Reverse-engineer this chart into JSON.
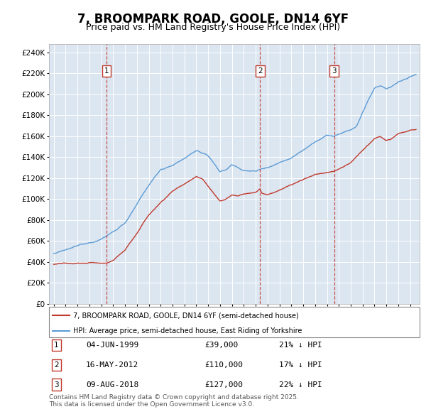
{
  "title": "7, BROOMPARK ROAD, GOOLE, DN14 6YF",
  "subtitle": "Price paid vs. HM Land Registry's House Price Index (HPI)",
  "legend_label_red": "7, BROOMPARK ROAD, GOOLE, DN14 6YF (semi-detached house)",
  "legend_label_blue": "HPI: Average price, semi-detached house, East Riding of Yorkshire",
  "footer": "Contains HM Land Registry data © Crown copyright and database right 2025.\nThis data is licensed under the Open Government Licence v3.0.",
  "sales": [
    {
      "num": 1,
      "date": "04-JUN-1999",
      "price": 39000,
      "year_x": 1999.43,
      "hpi_pct": "21% ↓ HPI"
    },
    {
      "num": 2,
      "date": "16-MAY-2012",
      "price": 110000,
      "year_x": 2012.37,
      "hpi_pct": "17% ↓ HPI"
    },
    {
      "num": 3,
      "date": "09-AUG-2018",
      "price": 127000,
      "year_x": 2018.61,
      "hpi_pct": "22% ↓ HPI"
    }
  ],
  "ylim": [
    0,
    248000
  ],
  "xlim": [
    1994.6,
    2025.8
  ],
  "yticks": [
    0,
    20000,
    40000,
    60000,
    80000,
    100000,
    120000,
    140000,
    160000,
    180000,
    200000,
    220000,
    240000
  ],
  "plot_bg_color": "#dce6f1",
  "red_color": "#c0392b",
  "blue_color": "#5b9bd5",
  "grid_color": "#ffffff",
  "title_fontsize": 12,
  "subtitle_fontsize": 9,
  "table_fontsize": 8,
  "footer_fontsize": 6.5
}
